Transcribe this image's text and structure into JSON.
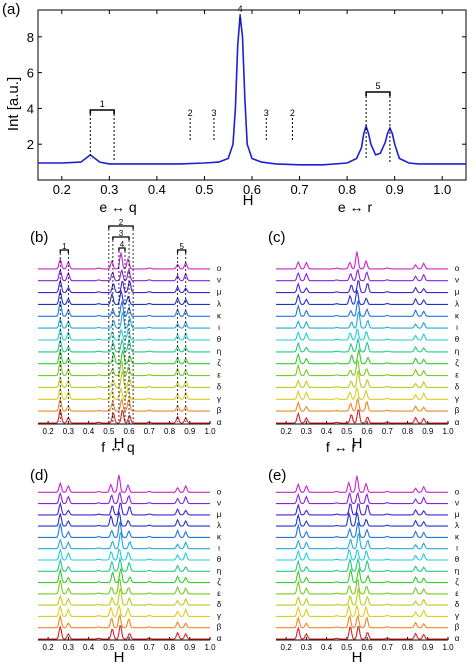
{
  "chart_data": [
    {
      "panel_label": "(a)",
      "type": "line",
      "xlabel": "H",
      "ylabel": "Int [a.u.]",
      "xlim": [
        0.15,
        1.05
      ],
      "ylim": [
        0,
        9.5
      ],
      "x_ticks": [
        "0.2",
        "0.3",
        "0.4",
        "0.5",
        "0.6",
        "0.7",
        "0.8",
        "0.9",
        "1.0"
      ],
      "y_ticks": [
        "2",
        "4",
        "6",
        "8"
      ],
      "series": [
        {
          "color": "#1f1fd0",
          "x": [
            0.15,
            0.2,
            0.24,
            0.25,
            0.26,
            0.27,
            0.28,
            0.3,
            0.35,
            0.4,
            0.45,
            0.5,
            0.53,
            0.55,
            0.56,
            0.565,
            0.57,
            0.575,
            0.58,
            0.585,
            0.59,
            0.6,
            0.62,
            0.65,
            0.7,
            0.75,
            0.8,
            0.82,
            0.83,
            0.835,
            0.84,
            0.845,
            0.85,
            0.86,
            0.87,
            0.88,
            0.885,
            0.89,
            0.895,
            0.9,
            0.91,
            0.93,
            0.95,
            1.0,
            1.05
          ],
          "y": [
            0.95,
            0.95,
            1.0,
            1.2,
            1.4,
            1.2,
            1.0,
            0.9,
            0.9,
            0.9,
            0.9,
            0.95,
            1.0,
            1.2,
            2.0,
            4.0,
            7.5,
            9.2,
            8.0,
            4.5,
            2.0,
            1.2,
            1.0,
            0.9,
            0.85,
            0.85,
            0.95,
            1.2,
            1.8,
            2.6,
            3.0,
            2.6,
            2.0,
            1.4,
            1.5,
            2.1,
            2.6,
            2.9,
            2.6,
            2.0,
            1.2,
            0.95,
            0.9,
            0.9,
            0.9
          ]
        }
      ],
      "annotations": [
        {
          "text": "1",
          "type": "bracket",
          "x_range": [
            0.26,
            0.31
          ]
        },
        {
          "text": "2",
          "x": 0.47
        },
        {
          "text": "3",
          "x": 0.52
        },
        {
          "text": "4",
          "x": 0.575
        },
        {
          "text": "3",
          "x": 0.63
        },
        {
          "text": "2",
          "x": 0.685
        },
        {
          "text": "5",
          "type": "bracket",
          "x_range": [
            0.84,
            0.89
          ]
        }
      ]
    },
    {
      "panel_label": "(b)",
      "type": "line",
      "header": "e ↔ q",
      "xlabel": "H",
      "xlim": [
        0.15,
        1.0
      ],
      "x_ticks": [
        "0.2",
        "0.3",
        "0.4",
        "0.5",
        "0.6",
        "0.7",
        "0.8",
        "0.9",
        "1.0"
      ],
      "stack_labels": [
        "o",
        "ν",
        "μ",
        "λ",
        "κ",
        "ι",
        "θ",
        "η",
        "ζ",
        "ε",
        "δ",
        "γ",
        "β",
        "α"
      ],
      "peaks": [
        {
          "x": 0.26,
          "amp": 0.85
        },
        {
          "x": 0.3,
          "amp": 0.45
        },
        {
          "x": 0.52,
          "amp": 0.6
        },
        {
          "x": 0.565,
          "amp": 0.95
        },
        {
          "x": 0.6,
          "amp": 0.7
        },
        {
          "x": 0.84,
          "amp": 0.4
        },
        {
          "x": 0.88,
          "amp": 0.4
        }
      ],
      "annotations": [
        {
          "text": "1",
          "type": "bracket",
          "x_range": [
            0.26,
            0.3
          ]
        },
        {
          "text": "2",
          "type": "bracket",
          "x_range": [
            0.5,
            0.62
          ]
        },
        {
          "text": "3",
          "type": "bracket",
          "x_range": [
            0.52,
            0.6
          ]
        },
        {
          "text": "4",
          "type": "bracket",
          "x_range": [
            0.55,
            0.58
          ]
        },
        {
          "text": "5",
          "type": "bracket",
          "x_range": [
            0.84,
            0.88
          ]
        }
      ]
    },
    {
      "panel_label": "(c)",
      "type": "line",
      "header": "e ↔ r",
      "xlabel": "H",
      "xlim": [
        0.15,
        1.0
      ],
      "x_ticks": [
        "0.2",
        "0.3",
        "0.4",
        "0.5",
        "0.6",
        "0.7",
        "0.8",
        "0.9",
        "1.0"
      ],
      "stack_labels": [
        "o",
        "ν",
        "μ",
        "λ",
        "κ",
        "ι",
        "θ",
        "η",
        "ζ",
        "ε",
        "δ",
        "γ",
        "β",
        "α"
      ],
      "peaks": [
        {
          "x": 0.26,
          "amp": 0.6
        },
        {
          "x": 0.3,
          "amp": 0.4
        },
        {
          "x": 0.52,
          "amp": 0.5
        },
        {
          "x": 0.555,
          "amp": 1.0
        },
        {
          "x": 0.6,
          "amp": 0.55
        },
        {
          "x": 0.84,
          "amp": 0.35
        },
        {
          "x": 0.88,
          "amp": 0.35
        }
      ]
    },
    {
      "panel_label": "(d)",
      "type": "line",
      "header": "f ↔ q",
      "xlabel": "H",
      "xlim": [
        0.15,
        1.0
      ],
      "x_ticks": [
        "0.2",
        "0.3",
        "0.4",
        "0.5",
        "0.6",
        "0.7",
        "0.8",
        "0.9",
        "1.0"
      ],
      "stack_labels": [
        "o",
        "ν",
        "μ",
        "λ",
        "κ",
        "ι",
        "θ",
        "η",
        "ζ",
        "ε",
        "δ",
        "γ",
        "β",
        "α"
      ],
      "peaks": [
        {
          "x": 0.26,
          "amp": 0.8
        },
        {
          "x": 0.3,
          "amp": 0.4
        },
        {
          "x": 0.515,
          "amp": 0.6
        },
        {
          "x": 0.555,
          "amp": 1.0
        },
        {
          "x": 0.6,
          "amp": 0.5
        },
        {
          "x": 0.84,
          "amp": 0.4
        },
        {
          "x": 0.88,
          "amp": 0.4
        }
      ]
    },
    {
      "panel_label": "(e)",
      "type": "line",
      "header": "f ↔ r",
      "xlabel": "H",
      "xlim": [
        0.15,
        1.0
      ],
      "x_ticks": [
        "0.2",
        "0.3",
        "0.4",
        "0.5",
        "0.6",
        "0.7",
        "0.8",
        "0.9",
        "1.0"
      ],
      "stack_labels": [
        "o",
        "ν",
        "μ",
        "λ",
        "κ",
        "ι",
        "θ",
        "η",
        "ζ",
        "ε",
        "δ",
        "γ",
        "β",
        "α"
      ],
      "peaks": [
        {
          "x": 0.26,
          "amp": 0.7
        },
        {
          "x": 0.3,
          "amp": 0.4
        },
        {
          "x": 0.515,
          "amp": 0.75
        },
        {
          "x": 0.555,
          "amp": 0.95
        },
        {
          "x": 0.6,
          "amp": 0.6
        },
        {
          "x": 0.84,
          "amp": 0.35
        },
        {
          "x": 0.88,
          "amp": 0.35
        }
      ]
    }
  ],
  "stack_colors": [
    "#cc22cc",
    "#8822dd",
    "#4422dd",
    "#2233cc",
    "#2277dd",
    "#22aadd",
    "#22ccdd",
    "#22cc88",
    "#33cc33",
    "#77cc22",
    "#bbcc22",
    "#ddcc22",
    "#ee8822",
    "#dd2222"
  ]
}
